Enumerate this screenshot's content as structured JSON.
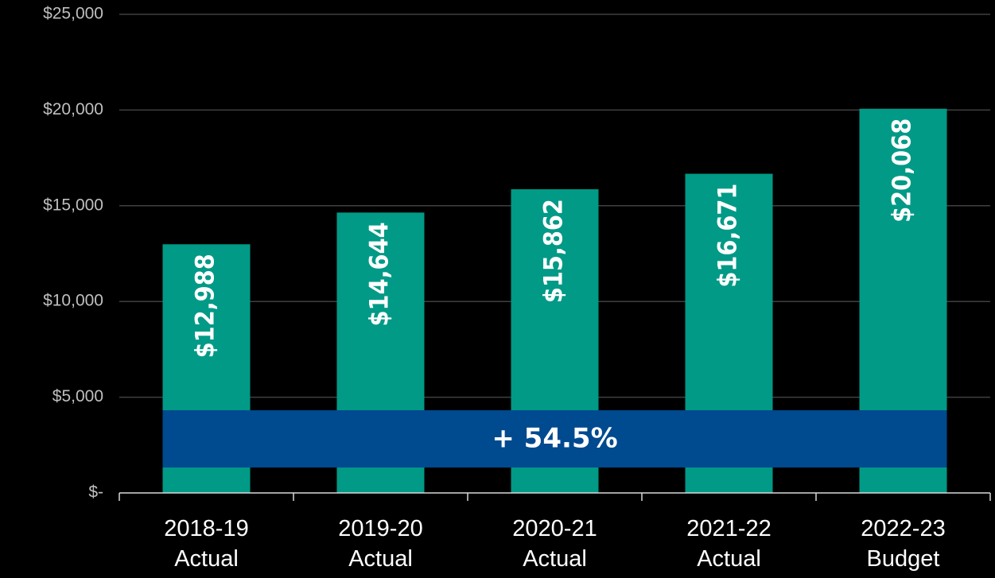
{
  "chart_data": {
    "type": "bar",
    "categories": [
      "2018-19\nActual",
      "2019-20\nActual",
      "2020-21\nActual",
      "2021-22\nActual",
      "2022-23\nBudget"
    ],
    "values": [
      12988,
      14644,
      15862,
      16671,
      20068
    ],
    "value_labels": [
      "$12,988",
      "$14,644",
      "$15,862",
      "$16,671",
      "$20,068"
    ],
    "color": "#009a86",
    "ylim": [
      0,
      25000
    ],
    "yticks": [
      {
        "value": 0,
        "label": "$-"
      },
      {
        "value": 5000,
        "label": "$5,000"
      },
      {
        "value": 10000,
        "label": "$10,000"
      },
      {
        "value": 15000,
        "label": "$15,000"
      },
      {
        "value": 20000,
        "label": "$20,000"
      },
      {
        "value": 25000,
        "label": "$25,000"
      }
    ],
    "grid": true,
    "annotation": "+ 54.5%"
  }
}
